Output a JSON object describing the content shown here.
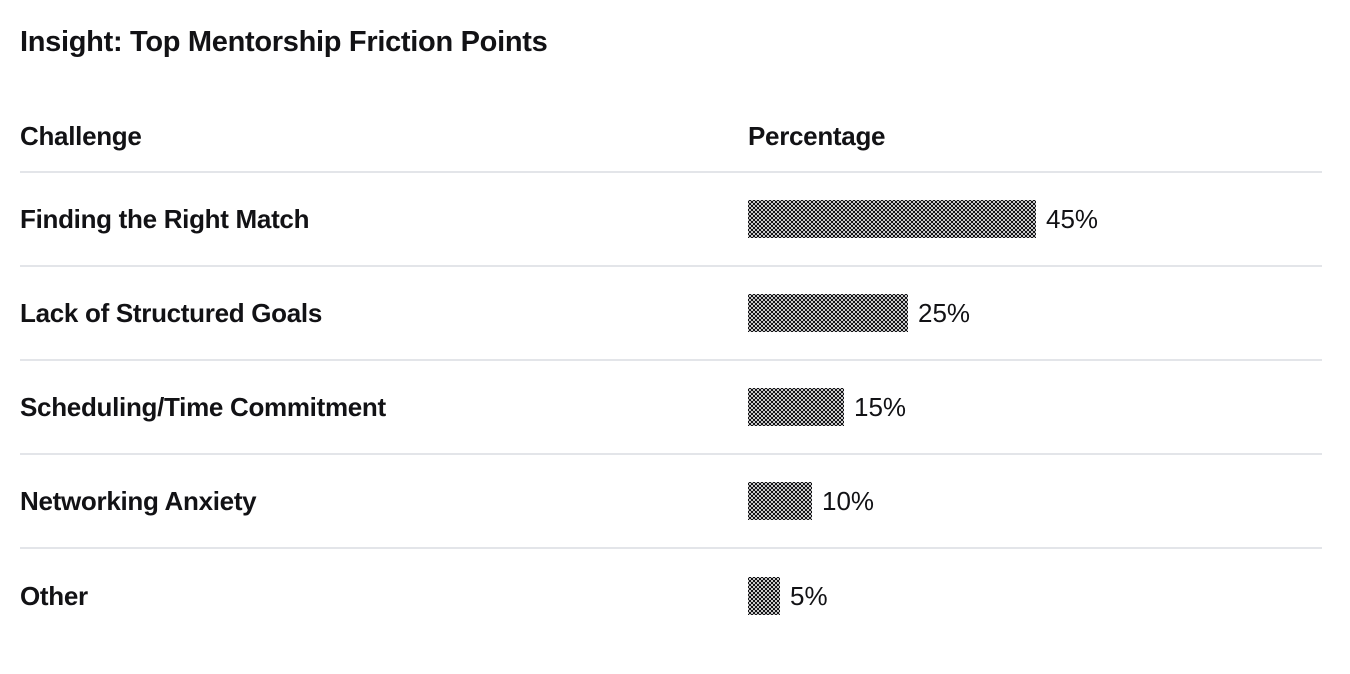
{
  "page": {
    "title": "Insight: Top Mentorship Friction Points"
  },
  "table": {
    "headers": {
      "challenge": "Challenge",
      "percentage": "Percentage"
    },
    "rows": [
      {
        "challenge": "Finding the Right Match",
        "value": 45,
        "value_label": "45%"
      },
      {
        "challenge": "Lack of Structured Goals",
        "value": 25,
        "value_label": "25%"
      },
      {
        "challenge": "Scheduling/Time Commitment",
        "value": 15,
        "value_label": "15%"
      },
      {
        "challenge": "Networking Anxiety",
        "value": 10,
        "value_label": "10%"
      },
      {
        "challenge": "Other",
        "value": 5,
        "value_label": "5%"
      }
    ]
  },
  "chart_data": {
    "type": "bar",
    "orientation": "horizontal",
    "title": "Insight: Top Mentorship Friction Points",
    "categories": [
      "Finding the Right Match",
      "Lack of Structured Goals",
      "Scheduling/Time Commitment",
      "Networking Anxiety",
      "Other"
    ],
    "values": [
      45,
      25,
      15,
      10,
      5
    ],
    "value_labels": [
      "45%",
      "25%",
      "15%",
      "10%",
      "5%"
    ],
    "xlabel": "Percentage",
    "ylabel": "Challenge",
    "xlim": [
      0,
      100
    ],
    "grid": false,
    "legend": false,
    "bar_style": "dark dotted shade (dithered block texture)",
    "bar_color": "#141417",
    "value_label_position": "right-of-bar"
  },
  "colors": {
    "background": "#ffffff",
    "text": "#121215",
    "divider": "#e3e5e9",
    "bar_fill": "#141417",
    "bar_dot": "#f2f2f2"
  }
}
